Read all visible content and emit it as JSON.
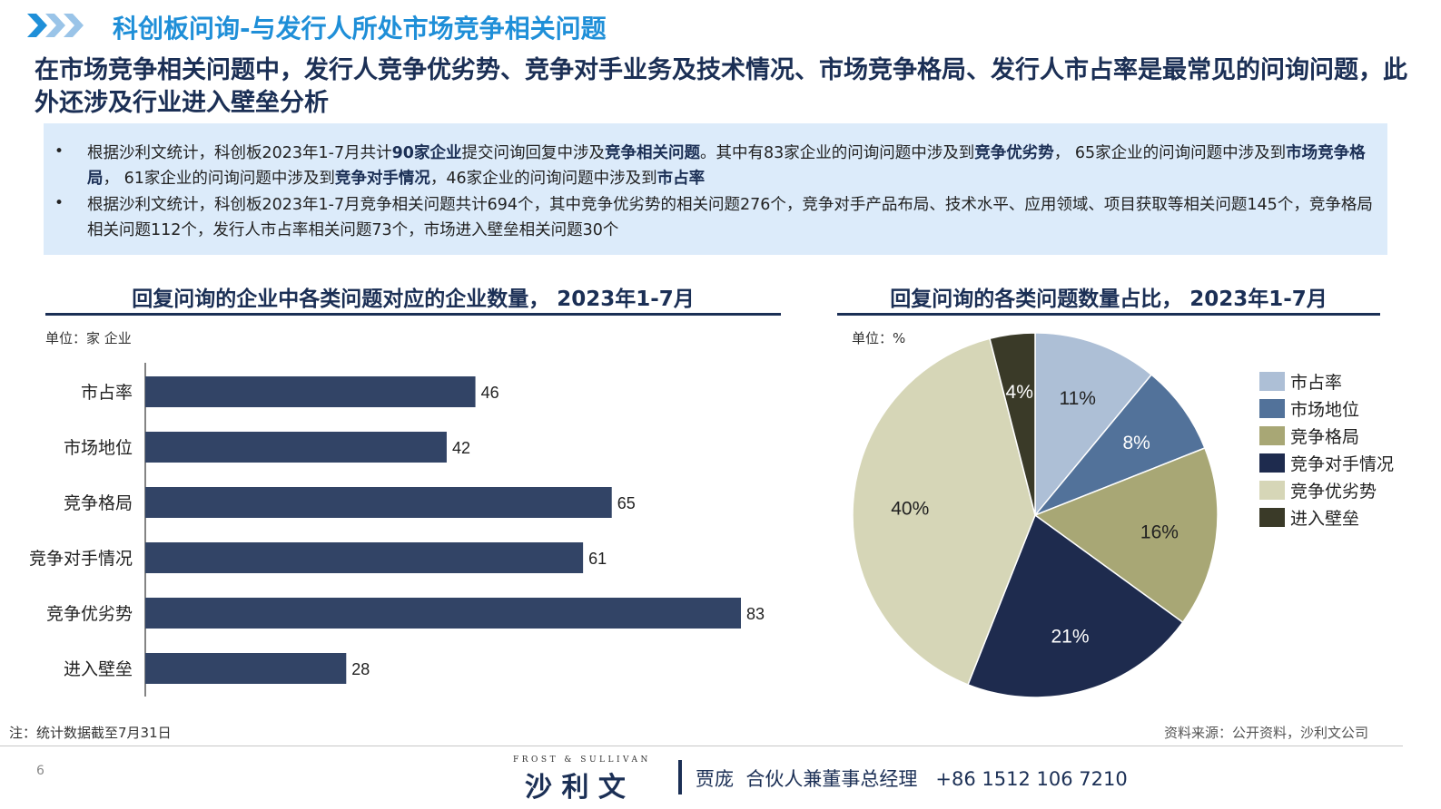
{
  "header": {
    "title": "科创板问询-与发行人所处市场竞争相关问题",
    "chevron_color": "#1f8fd8"
  },
  "headline": "在市场竞争相关问题中，发行人竞争优劣势、竞争对手业务及技术情况、市场竞争格局、发行人市占率是最常见的问询问题，此外还涉及行业进入壁垒分析",
  "summary": {
    "bullets": [
      [
        {
          "t": "根据沙利文统计，科创板2023年1-7月共计",
          "b": false
        },
        {
          "t": "90家企业",
          "b": true
        },
        {
          "t": "提交问询回复中涉及",
          "b": false
        },
        {
          "t": "竞争相关问题",
          "b": true
        },
        {
          "t": "。其中有83家企业的问询问题中涉及到",
          "b": false
        },
        {
          "t": "竞争优劣势",
          "b": true
        },
        {
          "t": "， 65家企业的问询问题中涉及到",
          "b": false
        },
        {
          "t": "市场竞争格局",
          "b": true
        },
        {
          "t": "， 61家企业的问询问题中涉及到",
          "b": false
        },
        {
          "t": "竞争对手情况",
          "b": true
        },
        {
          "t": "，46家企业的问询问题中涉及到",
          "b": false
        },
        {
          "t": "市占率",
          "b": true
        }
      ],
      [
        {
          "t": "根据沙利文统计，科创板2023年1-7月竞争相关问题共计694个，其中竞争优劣势的相关问题276个，竞争对手产品布局、技术水平、应用领域、项目获取等相关问题145个，竞争格局相关问题112个，发行人市占率相关问题73个，市场进入壁垒相关问题30个",
          "b": false
        }
      ]
    ]
  },
  "chart_data": [
    {
      "type": "bar",
      "orientation": "horizontal",
      "title": "回复问询的企业中各类问题对应的企业数量， 2023年1-7月",
      "unit": "单位：家 企业",
      "categories": [
        "市占率",
        "市场地位",
        "竞争格局",
        "竞争对手情况",
        "竞争优劣势",
        "进入壁垒"
      ],
      "values": [
        46,
        42,
        65,
        61,
        83,
        28
      ],
      "xlim": [
        0,
        90
      ],
      "bar_color": "#324466"
    },
    {
      "type": "pie",
      "title": "回复问询的各类问题数量占比， 2023年1-7月",
      "unit": "单位：%",
      "labels": [
        "市占率",
        "市场地位",
        "竞争格局",
        "竞争对手情况",
        "竞争优劣势",
        "进入壁垒"
      ],
      "values": [
        11,
        8,
        16,
        21,
        40,
        4
      ],
      "value_labels": [
        "11%",
        "8%",
        "16%",
        "21%",
        "40%",
        "4%"
      ],
      "colors": [
        "#adbfd6",
        "#52729a",
        "#a8a775",
        "#1e2b4e",
        "#d6d6b7",
        "#3a3a28"
      ],
      "label_colors": [
        "#222222",
        "#ffffff",
        "#222222",
        "#ffffff",
        "#222222",
        "#ffffff"
      ],
      "legend_position": "right"
    }
  ],
  "footer": {
    "note": "注：统计数据截至7月31日",
    "source": "资料来源：公开资料，沙利文公司",
    "page_number": "6",
    "brand_en": "FROST & SULLIVAN",
    "brand_cn": "沙 利 文",
    "contact": "贾庞  合伙人兼董事总经理   +86 1512 106 7210"
  }
}
